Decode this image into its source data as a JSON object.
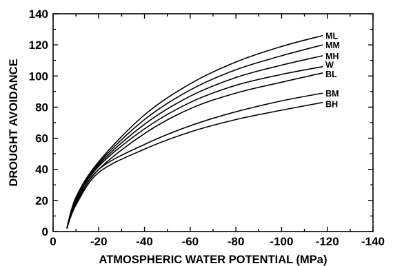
{
  "chart_data": {
    "type": "line",
    "title": "",
    "xlabel": "ATMOSPHERIC WATER POTENTIAL (MPa)",
    "ylabel": "DROUGHT AVOIDANCE",
    "xlim": [
      0,
      -140
    ],
    "ylim": [
      0,
      140
    ],
    "x_ticks": [
      "0",
      "-20",
      "-40",
      "-60",
      "-80",
      "-100",
      "-120",
      "-140"
    ],
    "y_ticks": [
      "0",
      "20",
      "40",
      "60",
      "80",
      "100",
      "120",
      "140"
    ],
    "grid": false,
    "legend": "none",
    "x": [
      -6,
      -10,
      -20,
      -40,
      -60,
      -80,
      -100,
      -118
    ],
    "series": [
      {
        "name": "ML",
        "values": [
          2,
          22,
          45,
          75,
          95,
          109,
          119,
          126
        ]
      },
      {
        "name": "MM",
        "values": [
          2,
          21,
          44,
          72,
          91,
          104,
          113,
          120
        ]
      },
      {
        "name": "MH",
        "values": [
          2,
          21,
          43,
          69,
          87,
          99,
          107,
          113
        ]
      },
      {
        "name": "W",
        "values": [
          2,
          20,
          42,
          66,
          83,
          94,
          101,
          106
        ]
      },
      {
        "name": "BL",
        "values": [
          2,
          19,
          40,
          63,
          79,
          89,
          96,
          102
        ]
      },
      {
        "name": "BM",
        "values": [
          2,
          18,
          40,
          56,
          68,
          77,
          84,
          89
        ]
      },
      {
        "name": "BH",
        "values": [
          2,
          17,
          38,
          53,
          64,
          72,
          78,
          83
        ]
      }
    ]
  }
}
